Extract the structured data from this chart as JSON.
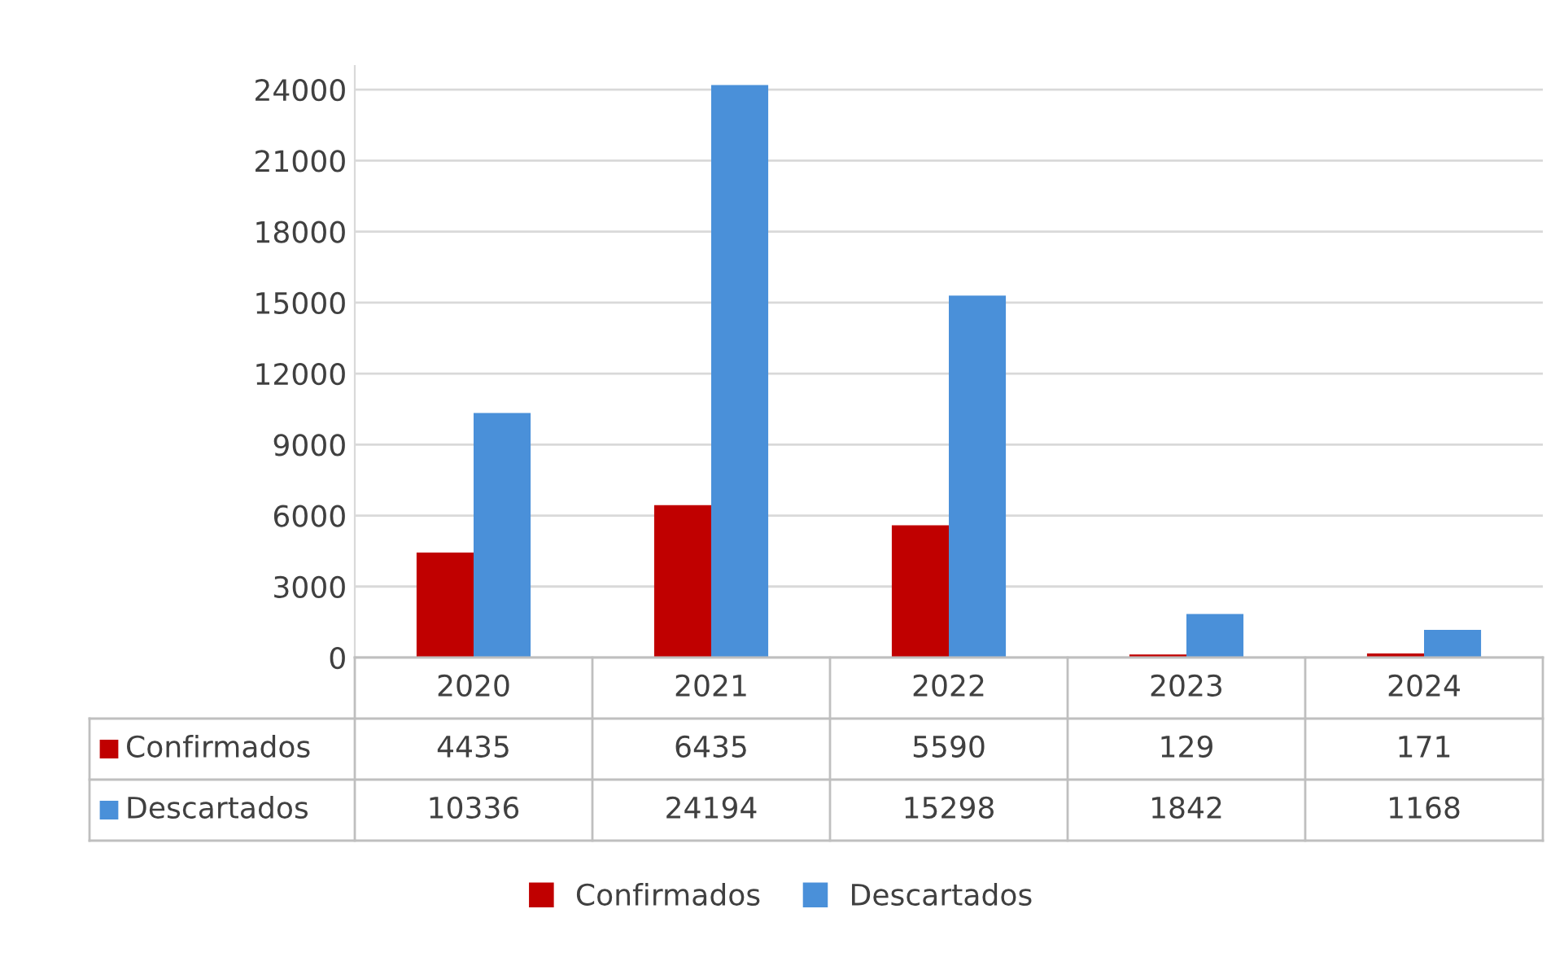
{
  "chart_data": {
    "type": "bar",
    "categories": [
      "2020",
      "2021",
      "2022",
      "2023",
      "2024"
    ],
    "series": [
      {
        "name": "Confirmados",
        "color": "#c00000",
        "values": [
          4435,
          6435,
          5590,
          129,
          171
        ]
      },
      {
        "name": "Descartados",
        "color": "#4a90d9",
        "values": [
          10336,
          24194,
          15298,
          1842,
          1168
        ]
      }
    ],
    "ylim": [
      0,
      25000
    ],
    "yticks": [
      0,
      3000,
      6000,
      9000,
      12000,
      15000,
      18000,
      21000,
      24000
    ],
    "grid": "y",
    "legend": "bottom",
    "data_labels": true
  }
}
